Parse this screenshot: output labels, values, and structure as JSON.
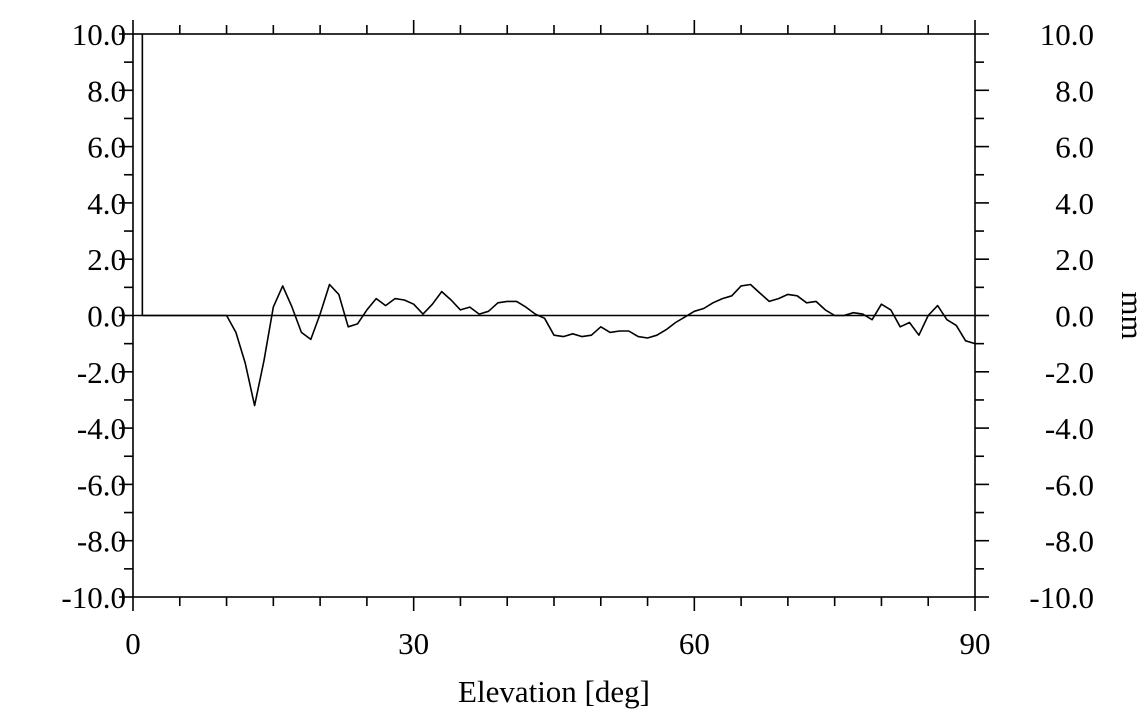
{
  "chart_data": {
    "type": "line",
    "title": "",
    "xlabel": "Elevation [deg]",
    "ylabel": "",
    "ylabel_right": "mm",
    "xlim": [
      0,
      90
    ],
    "ylim": [
      -10,
      10
    ],
    "x_ticks": [
      0,
      30,
      60,
      90
    ],
    "x_tick_labels": [
      "0",
      "30",
      "60",
      "90"
    ],
    "x_minor_step": 5,
    "y_ticks": [
      -10,
      -8,
      -6,
      -4,
      -2,
      0,
      2,
      4,
      6,
      8,
      10
    ],
    "y_tick_labels": [
      "-10.0",
      "-8.0",
      "-6.0",
      "-4.0",
      "-2.0",
      "0.0",
      "2.0",
      "4.0",
      "6.0",
      "8.0",
      "10.0"
    ],
    "y_minor_step": 1,
    "grid": false,
    "zero_line": true,
    "cutoff_line_x": 1,
    "series": [
      {
        "x": [
          1,
          2,
          3,
          4,
          5,
          6,
          7,
          8,
          9,
          10,
          11,
          12,
          13,
          14,
          15,
          16,
          17,
          18,
          19,
          20,
          21,
          22,
          23,
          24,
          25,
          26,
          27,
          28,
          29,
          30,
          31,
          32,
          33,
          34,
          35,
          36,
          37,
          38,
          39,
          40,
          41,
          42,
          43,
          44,
          45,
          46,
          47,
          48,
          49,
          50,
          51,
          52,
          53,
          54,
          55,
          56,
          57,
          58,
          59,
          60,
          61,
          62,
          63,
          64,
          65,
          66,
          67,
          68,
          69,
          70,
          71,
          72,
          73,
          74,
          75,
          76,
          77,
          78,
          79,
          80,
          81,
          82,
          83,
          84,
          85,
          86,
          87,
          88,
          89,
          90
        ],
        "y": [
          0.0,
          0.0,
          0.0,
          0.0,
          0.0,
          0.0,
          0.0,
          0.0,
          0.0,
          0.0,
          -0.6,
          -1.7,
          -3.2,
          -1.6,
          0.3,
          1.05,
          0.3,
          -0.6,
          -0.85,
          0.05,
          1.1,
          0.75,
          -0.4,
          -0.3,
          0.2,
          0.6,
          0.35,
          0.6,
          0.55,
          0.4,
          0.05,
          0.4,
          0.85,
          0.55,
          0.2,
          0.3,
          0.05,
          0.15,
          0.45,
          0.5,
          0.5,
          0.3,
          0.05,
          -0.1,
          -0.7,
          -0.75,
          -0.65,
          -0.75,
          -0.7,
          -0.4,
          -0.6,
          -0.55,
          -0.55,
          -0.75,
          -0.8,
          -0.7,
          -0.5,
          -0.25,
          -0.05,
          0.15,
          0.25,
          0.45,
          0.6,
          0.7,
          1.05,
          1.1,
          0.8,
          0.5,
          0.6,
          0.75,
          0.7,
          0.45,
          0.5,
          0.2,
          0.0,
          0.0,
          0.1,
          0.05,
          -0.15,
          0.4,
          0.2,
          -0.4,
          -0.25,
          -0.7,
          0.0,
          0.35,
          -0.15,
          -0.35,
          -0.9,
          -1.0
        ]
      }
    ]
  }
}
